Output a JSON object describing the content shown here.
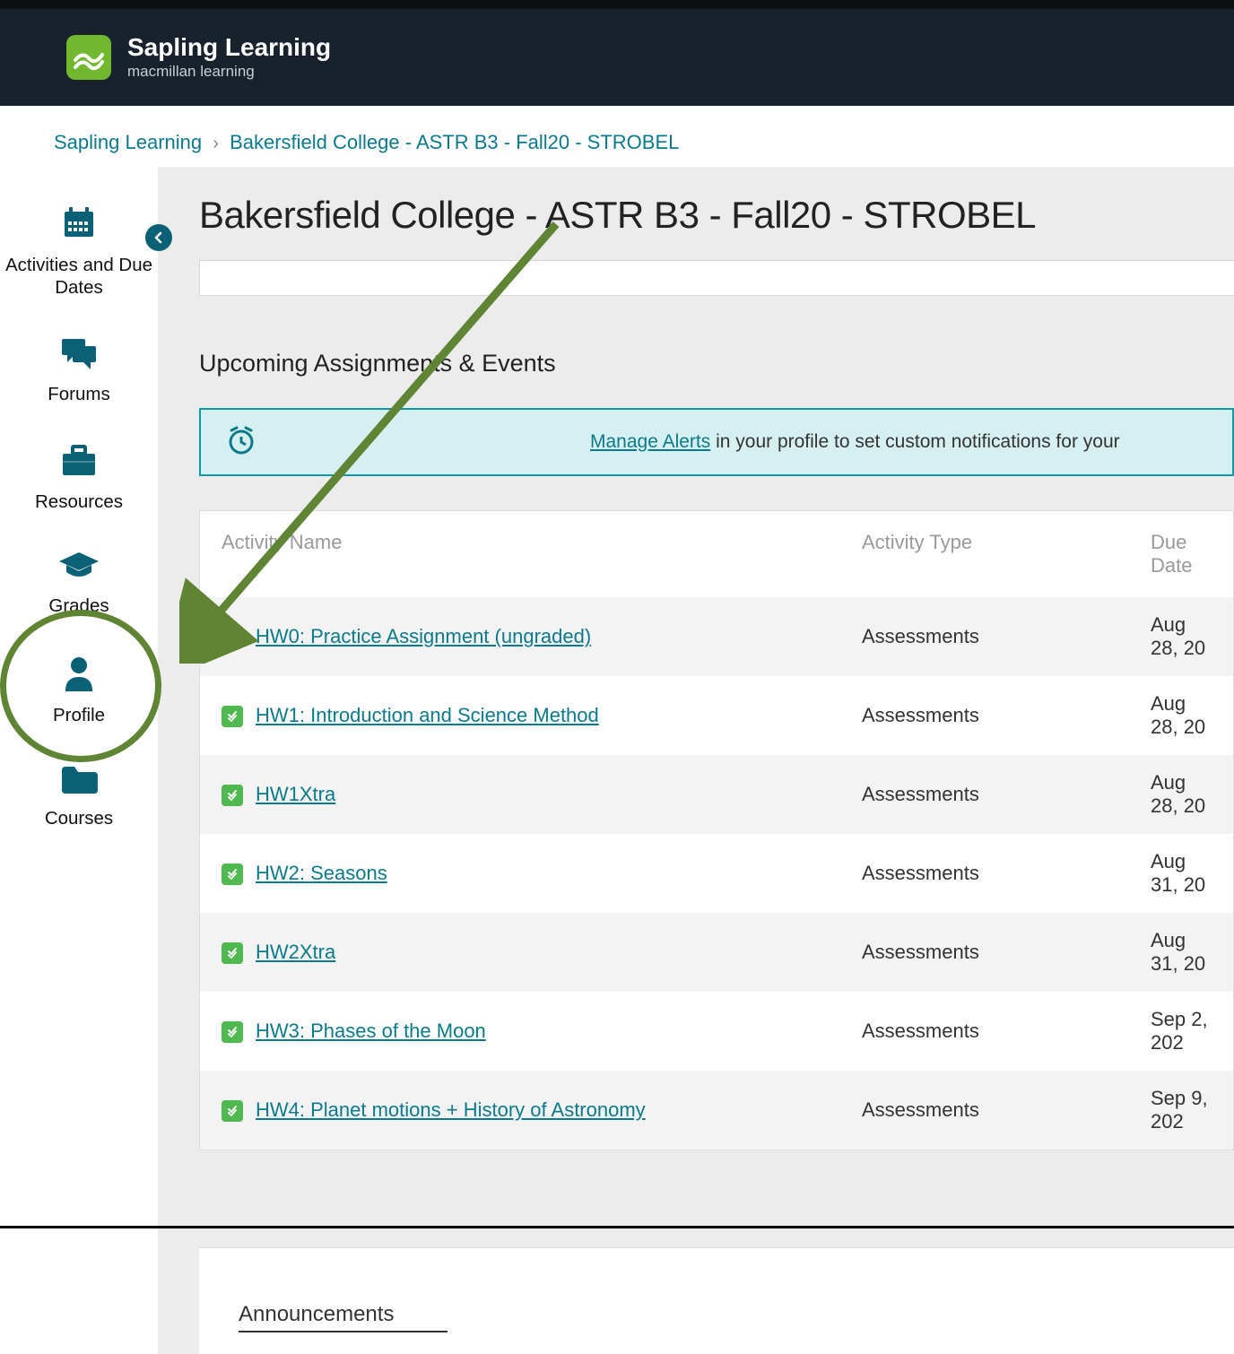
{
  "brand": {
    "name": "Sapling Learning",
    "sub": "macmillan learning"
  },
  "breadcrumb": {
    "root": "Sapling Learning",
    "course": "Bakersfield College - ASTR B3 - Fall20 - STROBEL"
  },
  "sidebar": {
    "items": [
      {
        "key": "activities",
        "label": "Activities and Due Dates"
      },
      {
        "key": "forums",
        "label": "Forums"
      },
      {
        "key": "resources",
        "label": "Resources"
      },
      {
        "key": "grades",
        "label": "Grades"
      },
      {
        "key": "profile",
        "label": "Profile"
      },
      {
        "key": "courses",
        "label": "Courses"
      }
    ]
  },
  "page": {
    "title": "Bakersfield College - ASTR B3 - Fall20 - STROBEL"
  },
  "section": {
    "upcoming": "Upcoming Assignments & Events",
    "announcements": "Announcements"
  },
  "alert": {
    "link": "Manage Alerts",
    "rest": " in your profile to set custom notifications for your"
  },
  "table": {
    "headers": {
      "name": "Activity Name",
      "type": "Activity Type",
      "due": "Due Date"
    },
    "rows": [
      {
        "name": "HW0: Practice Assignment (ungraded)",
        "type": "Assessments",
        "due": "Aug 28, 20"
      },
      {
        "name": "HW1: Introduction and Science Method",
        "type": "Assessments",
        "due": "Aug 28, 20"
      },
      {
        "name": "HW1Xtra",
        "type": "Assessments",
        "due": "Aug 28, 20"
      },
      {
        "name": "HW2: Seasons",
        "type": "Assessments",
        "due": "Aug 31, 20"
      },
      {
        "name": "HW2Xtra",
        "type": "Assessments",
        "due": "Aug 31, 20"
      },
      {
        "name": "HW3: Phases of the Moon",
        "type": "Assessments",
        "due": "Sep 2, 202"
      },
      {
        "name": "HW4: Planet motions + History of Astronomy",
        "type": "Assessments",
        "due": "Sep 9, 202"
      }
    ]
  },
  "colors": {
    "brand_teal": "#0b7a8a",
    "nav_icon": "#0a6074",
    "header_bg": "#17222c",
    "logo_bg": "#71b82e",
    "content_bg": "#ececec",
    "alert_bg": "#d6f0f2",
    "alert_border": "#0d9aa8",
    "check_bg": "#4fb84f",
    "annot_green": "#5f8433"
  },
  "annotation": {
    "circle_target": "grades",
    "arrow_from": "page-title",
    "arrow_to": "grades-nav"
  }
}
